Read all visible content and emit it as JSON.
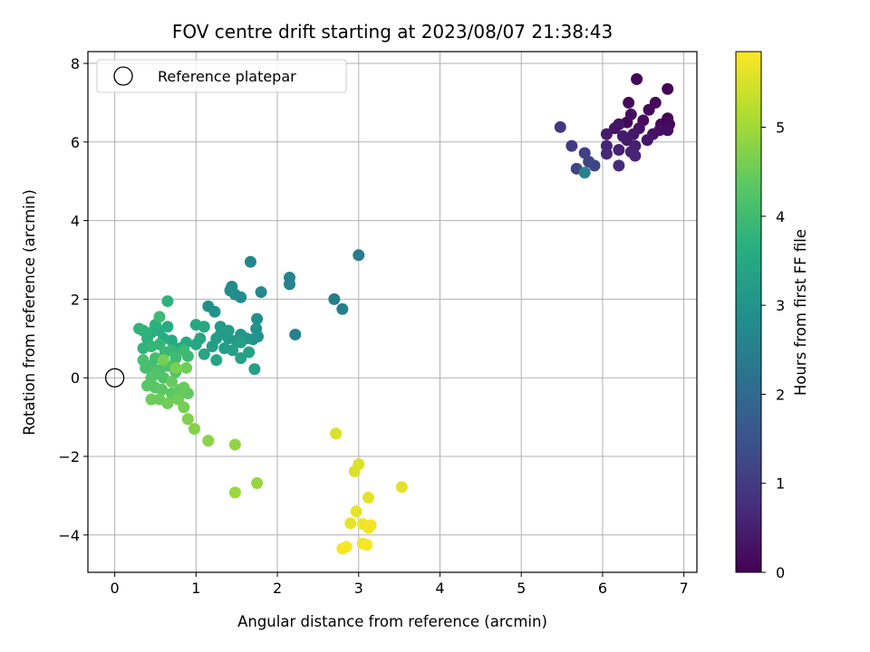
{
  "chart_data": {
    "type": "scatter",
    "title": "FOV centre drift starting at 2023/08/07 21:38:43",
    "xlabel": "Angular distance from reference (arcmin)",
    "ylabel": "Rotation from reference (arcmin)",
    "xlim": [
      -0.33,
      7.16
    ],
    "ylim": [
      -4.95,
      8.3
    ],
    "xticks": [
      0,
      1,
      2,
      3,
      4,
      5,
      6,
      7
    ],
    "yticks": [
      -4,
      -2,
      0,
      2,
      4,
      6,
      8
    ],
    "grid": true,
    "legend": {
      "position": "top-left",
      "entries": [
        "Reference platepar"
      ]
    },
    "colorbar": {
      "label": "Hours from first FF file",
      "colormap": "viridis",
      "min": 0,
      "max": 5.85,
      "ticks": [
        0,
        1,
        2,
        3,
        4,
        5
      ]
    },
    "reference_point": {
      "x": 0,
      "y": 0,
      "label": "Reference platepar"
    },
    "points": [
      [
        6.42,
        7.6,
        0.05
      ],
      [
        6.8,
        7.35,
        0.05
      ],
      [
        6.65,
        7.0,
        0.1
      ],
      [
        6.32,
        7.0,
        0.15
      ],
      [
        6.3,
        6.5,
        0.1
      ],
      [
        6.72,
        6.45,
        0.1
      ],
      [
        6.8,
        6.6,
        0.05
      ],
      [
        6.82,
        6.45,
        0.1
      ],
      [
        6.57,
        6.82,
        0.15
      ],
      [
        6.5,
        6.55,
        0.2
      ],
      [
        6.35,
        6.7,
        0.2
      ],
      [
        6.2,
        6.45,
        0.3
      ],
      [
        6.15,
        6.35,
        0.35
      ],
      [
        6.45,
        6.35,
        0.3
      ],
      [
        6.7,
        6.3,
        0.25
      ],
      [
        6.8,
        6.3,
        0.2
      ],
      [
        6.62,
        6.2,
        0.3
      ],
      [
        6.38,
        6.2,
        0.35
      ],
      [
        6.3,
        6.05,
        0.4
      ],
      [
        6.55,
        6.05,
        0.35
      ],
      [
        6.05,
        6.2,
        0.45
      ],
      [
        6.25,
        6.15,
        0.45
      ],
      [
        6.4,
        5.9,
        0.5
      ],
      [
        6.2,
        5.8,
        0.55
      ],
      [
        6.05,
        5.9,
        0.6
      ],
      [
        6.35,
        5.75,
        0.55
      ],
      [
        6.4,
        5.65,
        0.6
      ],
      [
        6.05,
        5.7,
        0.65
      ],
      [
        6.2,
        5.4,
        0.7
      ],
      [
        5.48,
        6.38,
        0.9
      ],
      [
        5.62,
        5.9,
        1.0
      ],
      [
        5.78,
        5.72,
        1.1
      ],
      [
        5.83,
        5.5,
        1.15
      ],
      [
        5.68,
        5.32,
        1.2
      ],
      [
        5.9,
        5.4,
        1.25
      ],
      [
        5.78,
        5.22,
        2.6
      ],
      [
        3.0,
        3.12,
        2.4
      ],
      [
        2.7,
        2.0,
        2.45
      ],
      [
        2.8,
        1.75,
        2.5
      ],
      [
        2.22,
        1.1,
        2.55
      ],
      [
        2.15,
        2.55,
        2.6
      ],
      [
        2.15,
        2.38,
        2.65
      ],
      [
        1.67,
        2.95,
        2.7
      ],
      [
        1.8,
        2.18,
        2.75
      ],
      [
        1.42,
        2.22,
        2.8
      ],
      [
        1.44,
        2.32,
        2.8
      ],
      [
        1.55,
        2.05,
        2.85
      ],
      [
        1.48,
        2.12,
        2.85
      ],
      [
        1.15,
        1.82,
        2.9
      ],
      [
        1.23,
        1.68,
        2.95
      ],
      [
        1.75,
        1.5,
        2.9
      ],
      [
        1.74,
        1.25,
        2.95
      ],
      [
        1.76,
        1.05,
        3.0
      ],
      [
        1.7,
        0.98,
        3.0
      ],
      [
        1.62,
        1.0,
        3.05
      ],
      [
        1.55,
        1.1,
        3.05
      ],
      [
        1.5,
        0.95,
        3.1
      ],
      [
        1.4,
        1.0,
        3.1
      ],
      [
        1.3,
        1.1,
        3.15
      ],
      [
        1.3,
        1.3,
        3.15
      ],
      [
        1.4,
        1.2,
        3.2
      ],
      [
        1.25,
        1.0,
        3.2
      ],
      [
        1.2,
        0.8,
        3.25
      ],
      [
        1.35,
        0.75,
        3.25
      ],
      [
        1.45,
        0.7,
        3.3
      ],
      [
        1.55,
        0.9,
        3.3
      ],
      [
        1.65,
        0.65,
        3.35
      ],
      [
        1.55,
        0.5,
        3.35
      ],
      [
        1.72,
        0.22,
        3.3
      ],
      [
        1.25,
        0.45,
        3.4
      ],
      [
        1.1,
        0.6,
        3.4
      ],
      [
        1.0,
        0.85,
        3.45
      ],
      [
        1.05,
        1.0,
        3.45
      ],
      [
        1.0,
        1.35,
        3.5
      ],
      [
        1.1,
        1.3,
        3.5
      ],
      [
        0.88,
        0.9,
        3.55
      ],
      [
        0.8,
        0.75,
        3.55
      ],
      [
        0.7,
        0.95,
        3.6
      ],
      [
        0.65,
        1.3,
        3.6
      ],
      [
        0.6,
        1.0,
        3.65
      ],
      [
        0.55,
        1.2,
        3.65
      ],
      [
        0.5,
        1.35,
        3.7
      ],
      [
        0.45,
        1.15,
        3.7
      ],
      [
        0.4,
        1.0,
        3.75
      ],
      [
        0.35,
        1.2,
        3.75
      ],
      [
        0.3,
        1.25,
        3.8
      ],
      [
        0.35,
        0.75,
        3.8
      ],
      [
        0.45,
        0.8,
        3.85
      ],
      [
        0.55,
        0.85,
        3.85
      ],
      [
        0.62,
        0.65,
        3.9
      ],
      [
        0.7,
        0.7,
        3.9
      ],
      [
        0.85,
        0.7,
        3.95
      ],
      [
        0.9,
        0.55,
        3.95
      ],
      [
        0.75,
        0.5,
        4.0
      ],
      [
        0.6,
        0.45,
        4.0
      ],
      [
        0.5,
        0.5,
        4.05
      ],
      [
        0.45,
        0.3,
        4.05
      ],
      [
        0.38,
        0.25,
        4.1
      ],
      [
        0.35,
        0.45,
        4.1
      ],
      [
        0.55,
        0.2,
        4.15
      ],
      [
        0.65,
        0.3,
        4.15
      ],
      [
        0.75,
        0.15,
        4.2
      ],
      [
        0.6,
        0.0,
        4.2
      ],
      [
        0.5,
        0.1,
        4.25
      ],
      [
        0.45,
        0.0,
        4.25
      ],
      [
        0.4,
        -0.2,
        4.3
      ],
      [
        0.5,
        -0.25,
        4.3
      ],
      [
        0.58,
        -0.3,
        4.35
      ],
      [
        0.7,
        -0.4,
        4.35
      ],
      [
        0.8,
        -0.3,
        4.4
      ],
      [
        0.9,
        -0.4,
        4.4
      ],
      [
        0.85,
        -0.25,
        4.45
      ],
      [
        0.7,
        -0.1,
        4.45
      ],
      [
        0.45,
        -0.55,
        4.5
      ],
      [
        0.55,
        -0.55,
        4.5
      ],
      [
        0.65,
        -0.65,
        4.55
      ],
      [
        0.78,
        -0.55,
        4.55
      ],
      [
        0.85,
        -0.75,
        4.6
      ],
      [
        0.65,
        1.95,
        3.75
      ],
      [
        0.55,
        1.55,
        3.95
      ],
      [
        0.6,
        0.45,
        4.6
      ],
      [
        0.88,
        0.25,
        4.55
      ],
      [
        0.75,
        0.25,
        4.65
      ],
      [
        0.9,
        -1.05,
        4.7
      ],
      [
        0.98,
        -1.3,
        4.75
      ],
      [
        1.15,
        -1.6,
        4.8
      ],
      [
        1.48,
        -1.7,
        4.85
      ],
      [
        1.75,
        -2.68,
        4.9
      ],
      [
        1.48,
        -2.92,
        4.95
      ],
      [
        2.72,
        -1.42,
        5.5
      ],
      [
        3.0,
        -2.2,
        5.55
      ],
      [
        2.95,
        -2.38,
        5.55
      ],
      [
        3.53,
        -2.78,
        5.6
      ],
      [
        3.12,
        -3.05,
        5.6
      ],
      [
        2.97,
        -3.4,
        5.65
      ],
      [
        2.9,
        -3.7,
        5.65
      ],
      [
        3.05,
        -3.72,
        5.7
      ],
      [
        3.12,
        -3.82,
        5.7
      ],
      [
        3.15,
        -3.75,
        5.75
      ],
      [
        3.05,
        -4.22,
        5.75
      ],
      [
        3.1,
        -4.25,
        5.8
      ],
      [
        2.85,
        -4.3,
        5.8
      ],
      [
        2.8,
        -4.35,
        5.8
      ]
    ]
  }
}
